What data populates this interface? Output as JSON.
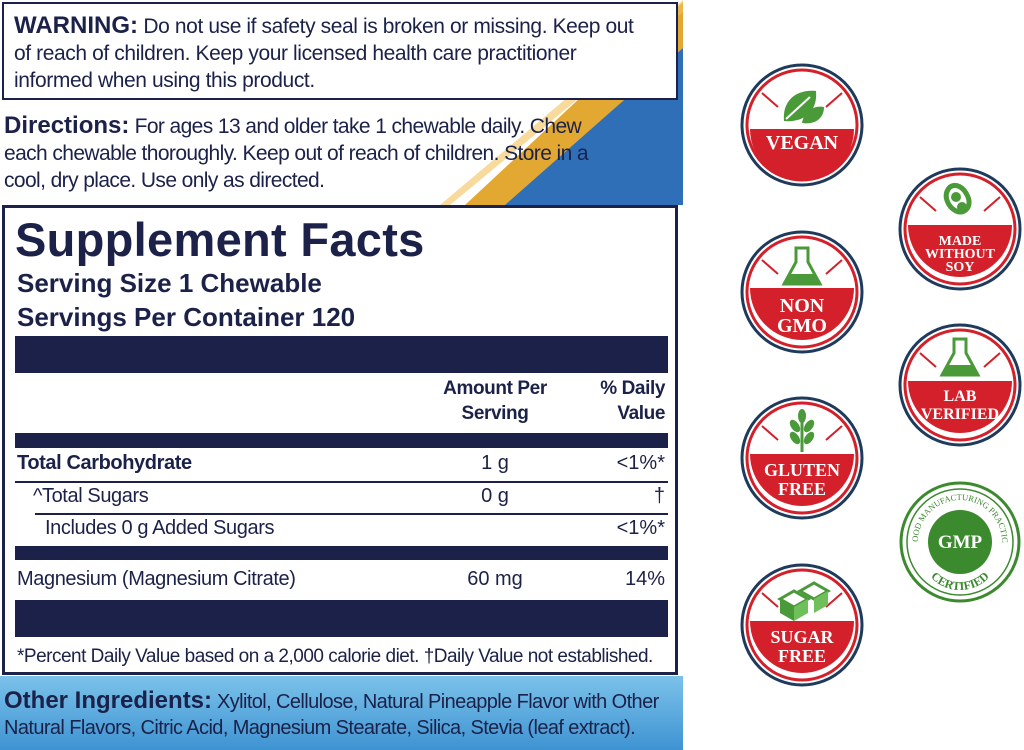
{
  "warning": {
    "title": "WARNING:",
    "text": " Do not use if safety seal is broken or missing. Keep out of reach of children. Keep your licensed health care practitioner informed when using this product."
  },
  "directions": {
    "title": "Directions:",
    "text": " For ages 13 and older take 1 chewable daily. Chew each chewable thoroughly. Keep out of reach of children. Store in a cool, dry place. Use only as directed."
  },
  "supplement_facts": {
    "title": "Supplement Facts",
    "serving_size": "Serving Size 1 Chewable",
    "servings_per_container": "Servings Per Container 120",
    "header_amount": "Amount Per Serving",
    "header_dv": "% Daily Value",
    "rows": [
      {
        "label": "Total Carbohydrate",
        "amount": "1 g",
        "dv": "<1%*"
      },
      {
        "label": "^Total Sugars",
        "amount": "0 g",
        "dv": "†"
      },
      {
        "label": "Includes 0 g Added Sugars",
        "amount": "",
        "dv": "<1%*"
      },
      {
        "label": "Magnesium (Magnesium Citrate)",
        "amount": "60 mg",
        "dv": "14%"
      }
    ],
    "footnote": "*Percent Daily Value based on a 2,000 calorie diet.  †Daily Value not established."
  },
  "other_ingredients": {
    "title": "Other Ingredients:",
    "text": " Xylitol, Cellulose, Natural Pineapple Flavor with Other Natural Flavors, Citric Acid, Magnesium Stearate, Silica, Stevia (leaf extract)."
  },
  "badges": {
    "vegan": {
      "line1": "VEGAN",
      "icon": "leaf-icon"
    },
    "made_without_soy": {
      "line1": "MADE",
      "line2": "WITHOUT",
      "line3": "SOY",
      "icon": "soybean-icon"
    },
    "non_gmo": {
      "line1": "NON",
      "line2": "GMO",
      "icon": "flask-icon"
    },
    "lab_verified": {
      "line1": "LAB",
      "line2": "VERIFIED",
      "icon": "flask-icon"
    },
    "gluten_free": {
      "line1": "GLUTEN",
      "line2": "FREE",
      "icon": "wheat-icon"
    },
    "gmp": {
      "center": "GMP",
      "ring_top": "GOOD MANUFACTURING PRACTICE",
      "ring_bottom": "CERTIFIED"
    },
    "sugar_free": {
      "line1": "SUGAR",
      "line2": "FREE",
      "icon": "sugar-cubes-icon"
    }
  },
  "colors": {
    "navy": "#1b2148",
    "badge_red": "#d3202a",
    "badge_ring_navy": "#1e3a5c",
    "gmp_green": "#3c8a2e",
    "stripe_gold": "#e3a832",
    "stripe_blue": "#2e6fb8",
    "stripe_lightblue": "#5aa8dc"
  }
}
